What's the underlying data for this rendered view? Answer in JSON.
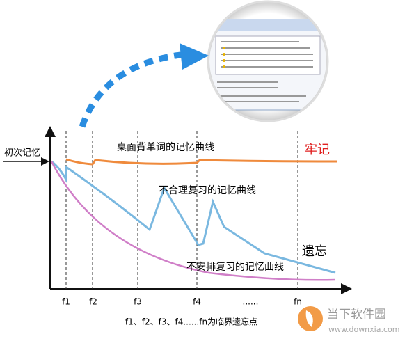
{
  "diagram": {
    "y_label": "初次记忆",
    "curves": {
      "desktop": "桌面背单词的记忆曲线",
      "unreasonable": "不合理复习的记忆曲线",
      "none": "不安排复习的记忆曲线"
    },
    "remember": "牢记",
    "forget": "遗忘",
    "x_labels": [
      "f1",
      "f2",
      "f3",
      "f4",
      "......",
      "fn"
    ],
    "caption": "f1、f2、f3、f4......fn为临界遗忘点"
  },
  "watermark": {
    "name": "当下软件园",
    "url": "www.downxia.com"
  }
}
